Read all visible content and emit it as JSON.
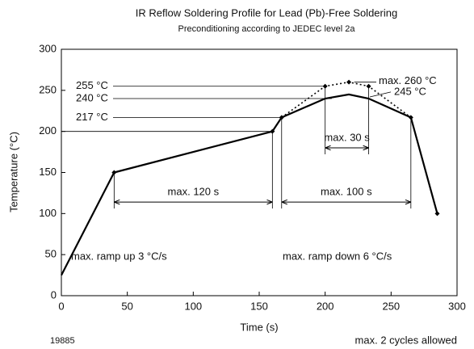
{
  "chart_data": {
    "type": "line",
    "title": "IR Reflow Soldering Profile for Lead (Pb)-Free Soldering",
    "subtitle": "Preconditioning according to JEDEC level 2a",
    "xlabel": "Time (s)",
    "ylabel": "Temperature (°C)",
    "xlim": [
      0,
      300
    ],
    "ylim": [
      0,
      300
    ],
    "xticks": [
      0,
      50,
      100,
      150,
      200,
      250,
      300
    ],
    "yticks": [
      0,
      50,
      100,
      150,
      200,
      250,
      300
    ],
    "series": [
      {
        "style": "solid",
        "color": "#000000",
        "x": [
          0,
          40,
          160,
          167,
          200,
          218,
          233,
          265,
          285
        ],
        "values": [
          25,
          150,
          200,
          217,
          240,
          245,
          240,
          217,
          100
        ]
      },
      {
        "style": "dotted",
        "color": "#000000",
        "x": [
          167,
          200,
          218,
          233,
          265
        ],
        "values": [
          217,
          255,
          260,
          255,
          217
        ]
      }
    ],
    "reference_lines": [
      {
        "label": "255 °C",
        "value": 255,
        "x": 200
      },
      {
        "label": "240 °C",
        "value": 240,
        "x": 205
      },
      {
        "label": "217 °C",
        "value": 217,
        "x": 167
      },
      {
        "value": 200,
        "x": 160
      }
    ],
    "peak_labels": [
      {
        "label": "max. 260 °C",
        "value": 260
      },
      {
        "label": "245 °C",
        "value": 245
      }
    ],
    "spans": [
      {
        "label": "max. 120 s",
        "x": [
          40,
          160
        ],
        "y": 114
      },
      {
        "label": "max. 100 s",
        "x": [
          167,
          265
        ],
        "y": 114
      },
      {
        "label": "max. 30 s",
        "x": [
          200,
          233
        ],
        "y": 180
      }
    ],
    "notes": [
      "max. ramp up 3 °C/s",
      "max. ramp down 6 °C/s"
    ],
    "figure_id": "19885",
    "footnote": "max. 2 cycles allowed"
  }
}
